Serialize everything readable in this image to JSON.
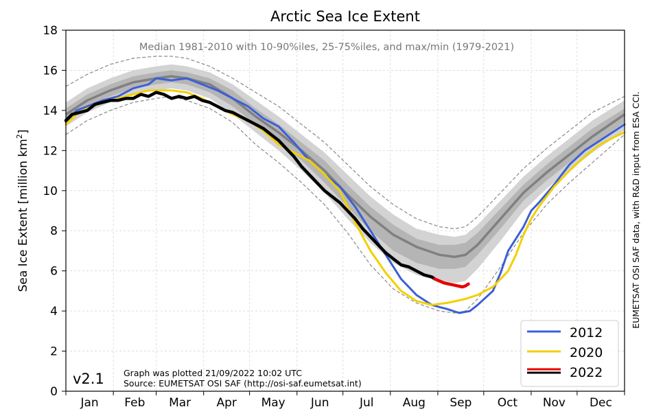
{
  "chart_data": {
    "type": "line",
    "title": "Arctic Sea Ice Extent",
    "ylabel": "Sea Ice Extent [million km²]",
    "ylabel_main": "Sea Ice Extent [million km",
    "ylabel_sup": "2",
    "ylabel_end": "]",
    "xlabel": "",
    "ylim": [
      0,
      18
    ],
    "xlim": [
      1,
      366
    ],
    "yticks": [
      0,
      2,
      4,
      6,
      8,
      10,
      12,
      14,
      16,
      18
    ],
    "months": [
      "Jan",
      "Feb",
      "Mar",
      "Apr",
      "May",
      "Jun",
      "Jul",
      "Aug",
      "Sep",
      "Oct",
      "Nov",
      "Dec"
    ],
    "month_start_days": [
      1,
      32,
      60,
      91,
      121,
      152,
      182,
      213,
      244,
      274,
      305,
      335,
      366
    ],
    "grid": true,
    "subtitle": "Median 1981-2010 with 10-90%iles, 25-75%iles, and max/min (1979-2021)",
    "side_note": "EUMETSAT OSI SAF data, with R&D input from ESA CCI.",
    "version": "v2.1",
    "plot_info_line1": "Graph was plotted 21/09/2022 10:02 UTC",
    "plot_info_line2": "Source: EUMETSAT OSI SAF (http://osi-saf.eumetsat.int)",
    "legend_position": "bottom-right",
    "climatology": {
      "days": [
        1,
        15,
        30,
        45,
        60,
        70,
        80,
        95,
        110,
        125,
        140,
        155,
        170,
        185,
        200,
        215,
        230,
        245,
        255,
        262,
        270,
        285,
        300,
        315,
        330,
        345,
        366
      ],
      "median": [
        13.8,
        14.5,
        15.0,
        15.4,
        15.6,
        15.7,
        15.6,
        15.3,
        14.6,
        13.7,
        12.9,
        12.0,
        11.0,
        9.8,
        8.7,
        7.8,
        7.2,
        6.8,
        6.7,
        6.8,
        7.3,
        8.6,
        9.9,
        10.9,
        11.8,
        12.7,
        13.8
      ],
      "p25": [
        13.5,
        14.2,
        14.7,
        15.1,
        15.3,
        15.4,
        15.3,
        14.9,
        14.2,
        13.3,
        12.5,
        11.5,
        10.4,
        9.2,
        8.0,
        7.0,
        6.4,
        6.1,
        6.1,
        6.2,
        6.8,
        8.1,
        9.5,
        10.5,
        11.4,
        12.3,
        13.4
      ],
      "p75": [
        14.1,
        14.8,
        15.3,
        15.7,
        15.9,
        16.0,
        15.9,
        15.6,
        15.0,
        14.1,
        13.3,
        12.4,
        11.5,
        10.3,
        9.2,
        8.3,
        7.6,
        7.3,
        7.3,
        7.4,
        7.9,
        9.1,
        10.3,
        11.3,
        12.2,
        13.1,
        14.1
      ],
      "p10": [
        13.2,
        13.9,
        14.4,
        14.8,
        15.0,
        15.1,
        15.0,
        14.6,
        13.8,
        12.9,
        12.0,
        11.0,
        9.9,
        8.6,
        7.4,
        6.4,
        5.8,
        5.5,
        5.4,
        5.5,
        6.1,
        7.5,
        9.0,
        10.1,
        11.0,
        11.9,
        13.0
      ],
      "p90": [
        14.4,
        15.1,
        15.6,
        16.0,
        16.2,
        16.3,
        16.2,
        15.9,
        15.3,
        14.5,
        13.7,
        12.8,
        11.9,
        10.8,
        9.7,
        8.8,
        8.1,
        7.8,
        7.7,
        7.8,
        8.3,
        9.5,
        10.7,
        11.7,
        12.6,
        13.5,
        14.5
      ],
      "min": [
        12.8,
        13.5,
        14.0,
        14.4,
        14.6,
        14.7,
        14.5,
        14.1,
        13.4,
        12.3,
        11.4,
        10.4,
        9.3,
        7.9,
        6.3,
        5.1,
        4.4,
        4.0,
        3.9,
        4.0,
        4.6,
        6.2,
        7.9,
        9.3,
        10.4,
        11.4,
        12.8
      ],
      "max": [
        15.2,
        15.8,
        16.3,
        16.6,
        16.7,
        16.7,
        16.6,
        16.2,
        15.6,
        14.9,
        14.2,
        13.3,
        12.4,
        11.3,
        10.2,
        9.3,
        8.6,
        8.2,
        8.1,
        8.2,
        8.7,
        9.9,
        11.1,
        12.1,
        13.0,
        13.9,
        14.7
      ]
    },
    "series": [
      {
        "name": "2012",
        "color": "#3c5fd6",
        "x": [
          1,
          8,
          15,
          25,
          35,
          45,
          55,
          60,
          70,
          80,
          90,
          100,
          110,
          120,
          130,
          140,
          150,
          160,
          170,
          180,
          190,
          200,
          210,
          220,
          230,
          240,
          250,
          258,
          265,
          270,
          280,
          285,
          290,
          300,
          305,
          310,
          320,
          330,
          340,
          350,
          360,
          366
        ],
        "values": [
          13.4,
          14.0,
          14.2,
          14.5,
          14.7,
          15.1,
          15.3,
          15.6,
          15.5,
          15.6,
          15.3,
          15.0,
          14.6,
          14.2,
          13.6,
          13.2,
          12.4,
          11.5,
          10.8,
          10.2,
          9.2,
          8.0,
          6.8,
          5.6,
          4.8,
          4.3,
          4.1,
          3.9,
          4.0,
          4.3,
          5.0,
          5.9,
          7.0,
          8.2,
          9.0,
          9.4,
          10.3,
          11.3,
          12.0,
          12.5,
          13.0,
          13.3
        ]
      },
      {
        "name": "2020",
        "color": "#f2d000",
        "x": [
          1,
          8,
          15,
          25,
          35,
          45,
          55,
          60,
          70,
          80,
          90,
          100,
          110,
          120,
          130,
          140,
          150,
          160,
          170,
          180,
          190,
          200,
          210,
          220,
          230,
          240,
          250,
          256,
          262,
          270,
          280,
          285,
          290,
          295,
          300,
          305,
          310,
          320,
          330,
          340,
          350,
          360,
          366
        ],
        "values": [
          13.3,
          13.8,
          14.1,
          14.4,
          14.6,
          14.8,
          15.0,
          15.0,
          15.0,
          14.9,
          14.6,
          14.2,
          13.8,
          13.5,
          13.0,
          12.3,
          11.9,
          11.5,
          10.8,
          10.0,
          8.4,
          7.0,
          5.9,
          5.0,
          4.5,
          4.3,
          4.4,
          4.5,
          4.6,
          4.8,
          5.2,
          5.6,
          6.0,
          6.8,
          7.8,
          8.6,
          9.2,
          10.2,
          11.0,
          11.7,
          12.3,
          12.7,
          12.9
        ]
      },
      {
        "name": "2022",
        "color": "#000000",
        "x": [
          1,
          5,
          10,
          15,
          20,
          25,
          30,
          35,
          40,
          45,
          50,
          55,
          60,
          65,
          70,
          75,
          80,
          85,
          90,
          95,
          100,
          105,
          110,
          115,
          120,
          125,
          130,
          135,
          140,
          145,
          150,
          155,
          160,
          165,
          170,
          175,
          180,
          185,
          190,
          195,
          200,
          205,
          210,
          215,
          220,
          225,
          230,
          235,
          240,
          242
        ],
        "values": [
          13.5,
          13.8,
          13.9,
          14.0,
          14.3,
          14.4,
          14.5,
          14.5,
          14.6,
          14.6,
          14.8,
          14.7,
          14.9,
          14.8,
          14.6,
          14.7,
          14.6,
          14.7,
          14.5,
          14.4,
          14.2,
          14.0,
          13.9,
          13.7,
          13.5,
          13.3,
          13.1,
          12.8,
          12.5,
          12.1,
          11.7,
          11.2,
          10.8,
          10.4,
          10.0,
          9.7,
          9.4,
          9.0,
          8.6,
          8.1,
          7.7,
          7.3,
          6.9,
          6.6,
          6.3,
          6.2,
          6.0,
          5.8,
          5.7,
          5.6
        ]
      },
      {
        "name": "2022",
        "color": "#e60000",
        "x": [
          242,
          245,
          248,
          251,
          254,
          257,
          260,
          262,
          264
        ],
        "values": [
          5.6,
          5.5,
          5.4,
          5.35,
          5.3,
          5.25,
          5.2,
          5.25,
          5.35
        ]
      }
    ],
    "legend": [
      {
        "label": "2012",
        "color": "#3c5fd6"
      },
      {
        "label": "2020",
        "color": "#f2d000"
      },
      {
        "label": "2022",
        "color": "#e60000",
        "color2": "#000000"
      }
    ],
    "colors": {
      "band_minmax": "#888888",
      "band_outer": "#d3d3d3",
      "band_inner": "#b5b5b5",
      "median": "#808080",
      "grid": "#dddddd"
    }
  }
}
